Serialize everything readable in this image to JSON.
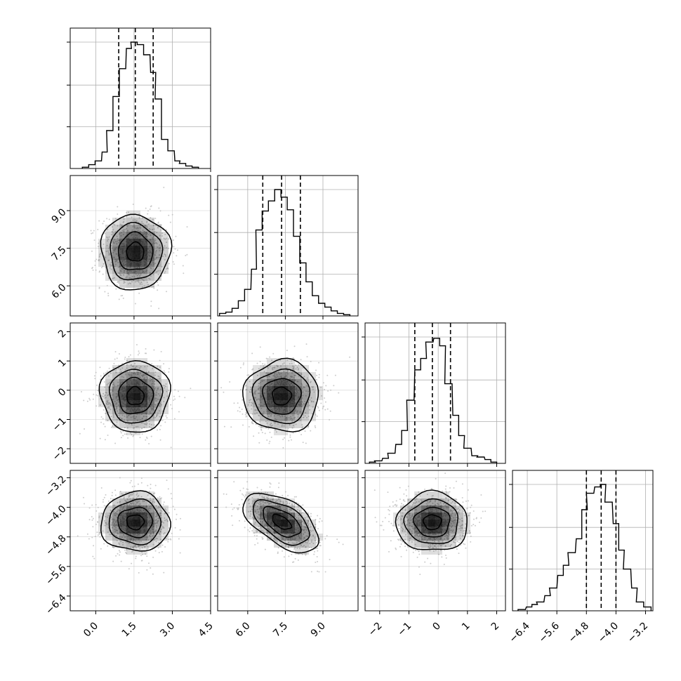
{
  "chart_data": {
    "type": "corner",
    "parameters": [
      {
        "index": 0,
        "range": [
          -1.0,
          4.5
        ],
        "ticks": [
          0.0,
          1.5,
          3.0,
          4.5
        ],
        "tick_labels": [
          "0.0",
          "1.5",
          "3.0",
          "4.5"
        ],
        "quantiles": [
          0.9,
          1.55,
          2.25
        ],
        "hist_centers": [
          -0.4,
          -0.15,
          0.1,
          0.35,
          0.55,
          0.8,
          1.05,
          1.3,
          1.5,
          1.75,
          2.0,
          2.25,
          2.45,
          2.7,
          2.95,
          3.2,
          3.4,
          3.65,
          3.9
        ],
        "hist_values": [
          0.01,
          0.03,
          0.06,
          0.13,
          0.3,
          0.57,
          0.79,
          0.95,
          1.0,
          0.98,
          0.9,
          0.76,
          0.55,
          0.23,
          0.14,
          0.06,
          0.04,
          0.02,
          0.01
        ],
        "hist_grid": [
          0.33,
          0.66,
          1.0
        ]
      },
      {
        "index": 1,
        "range": [
          4.8,
          10.4
        ],
        "ticks": [
          6.0,
          7.5,
          9.0
        ],
        "tick_labels": [
          "6.0",
          "7.5",
          "9.0"
        ],
        "quantiles": [
          6.6,
          7.35,
          8.1
        ],
        "hist_centers": [
          5.0,
          5.25,
          5.5,
          5.75,
          6.0,
          6.25,
          6.45,
          6.7,
          6.95,
          7.2,
          7.45,
          7.7,
          7.95,
          8.2,
          8.45,
          8.7,
          8.95,
          9.2,
          9.45,
          9.7,
          9.95
        ],
        "hist_values": [
          0.02,
          0.03,
          0.06,
          0.12,
          0.21,
          0.37,
          0.68,
          0.83,
          0.91,
          1.0,
          0.94,
          0.84,
          0.63,
          0.42,
          0.27,
          0.16,
          0.1,
          0.07,
          0.04,
          0.02,
          0.01
        ],
        "hist_grid": [
          0.33,
          0.66,
          1.0
        ]
      },
      {
        "index": 2,
        "range": [
          -2.5,
          2.3
        ],
        "ticks": [
          -2,
          -1,
          0,
          1,
          2
        ],
        "tick_labels": [
          "−2",
          "−1",
          "0",
          "1",
          "2"
        ],
        "quantiles": [
          -0.8,
          -0.2,
          0.42
        ],
        "hist_centers": [
          -2.25,
          -2.05,
          -1.8,
          -1.6,
          -1.35,
          -1.15,
          -0.95,
          -0.7,
          -0.5,
          -0.3,
          -0.05,
          0.15,
          0.35,
          0.6,
          0.8,
          1.0,
          1.25,
          1.45,
          1.7,
          1.9
        ],
        "hist_values": [
          0.01,
          0.02,
          0.04,
          0.08,
          0.15,
          0.26,
          0.5,
          0.74,
          0.83,
          0.96,
          0.99,
          0.93,
          0.63,
          0.38,
          0.22,
          0.12,
          0.06,
          0.05,
          0.03,
          0.01
        ],
        "hist_grid": [
          0.33,
          0.66,
          1.0
        ]
      },
      {
        "index": 3,
        "range": [
          -6.8,
          -3.0
        ],
        "ticks": [
          -6.4,
          -5.6,
          -4.8,
          -4.0,
          -3.2
        ],
        "tick_labels": [
          "−6.4",
          "−5.6",
          "−4.8",
          "−4.0",
          "−3.2"
        ],
        "quantiles": [
          -4.8,
          -4.4,
          -4.0
        ],
        "hist_centers": [
          -6.55,
          -6.35,
          -6.2,
          -6.05,
          -5.85,
          -5.7,
          -5.5,
          -5.35,
          -5.2,
          -5.0,
          -4.85,
          -4.7,
          -4.5,
          -4.35,
          -4.2,
          -4.0,
          -3.85,
          -3.7,
          -3.5,
          -3.35,
          -3.15
        ],
        "hist_values": [
          0.01,
          0.03,
          0.05,
          0.07,
          0.12,
          0.18,
          0.28,
          0.36,
          0.46,
          0.57,
          0.8,
          0.93,
          0.98,
          1.0,
          0.86,
          0.69,
          0.48,
          0.33,
          0.18,
          0.07,
          0.03
        ],
        "hist_grid": [
          0.33,
          0.66,
          1.0
        ]
      }
    ],
    "correlation": {
      "1_0": 0.0,
      "2_0": 0.0,
      "2_1": 0.0,
      "3_0": 0.0,
      "3_1": -0.55,
      "3_2": 0.0
    },
    "contour_levels_sigma": [
      0.5,
      1.0,
      1.5,
      2.0
    ],
    "colors": {
      "line": "#000000",
      "grid": "#b0b0b0",
      "scatter": "#b8b8b8",
      "density": "#000000"
    }
  }
}
